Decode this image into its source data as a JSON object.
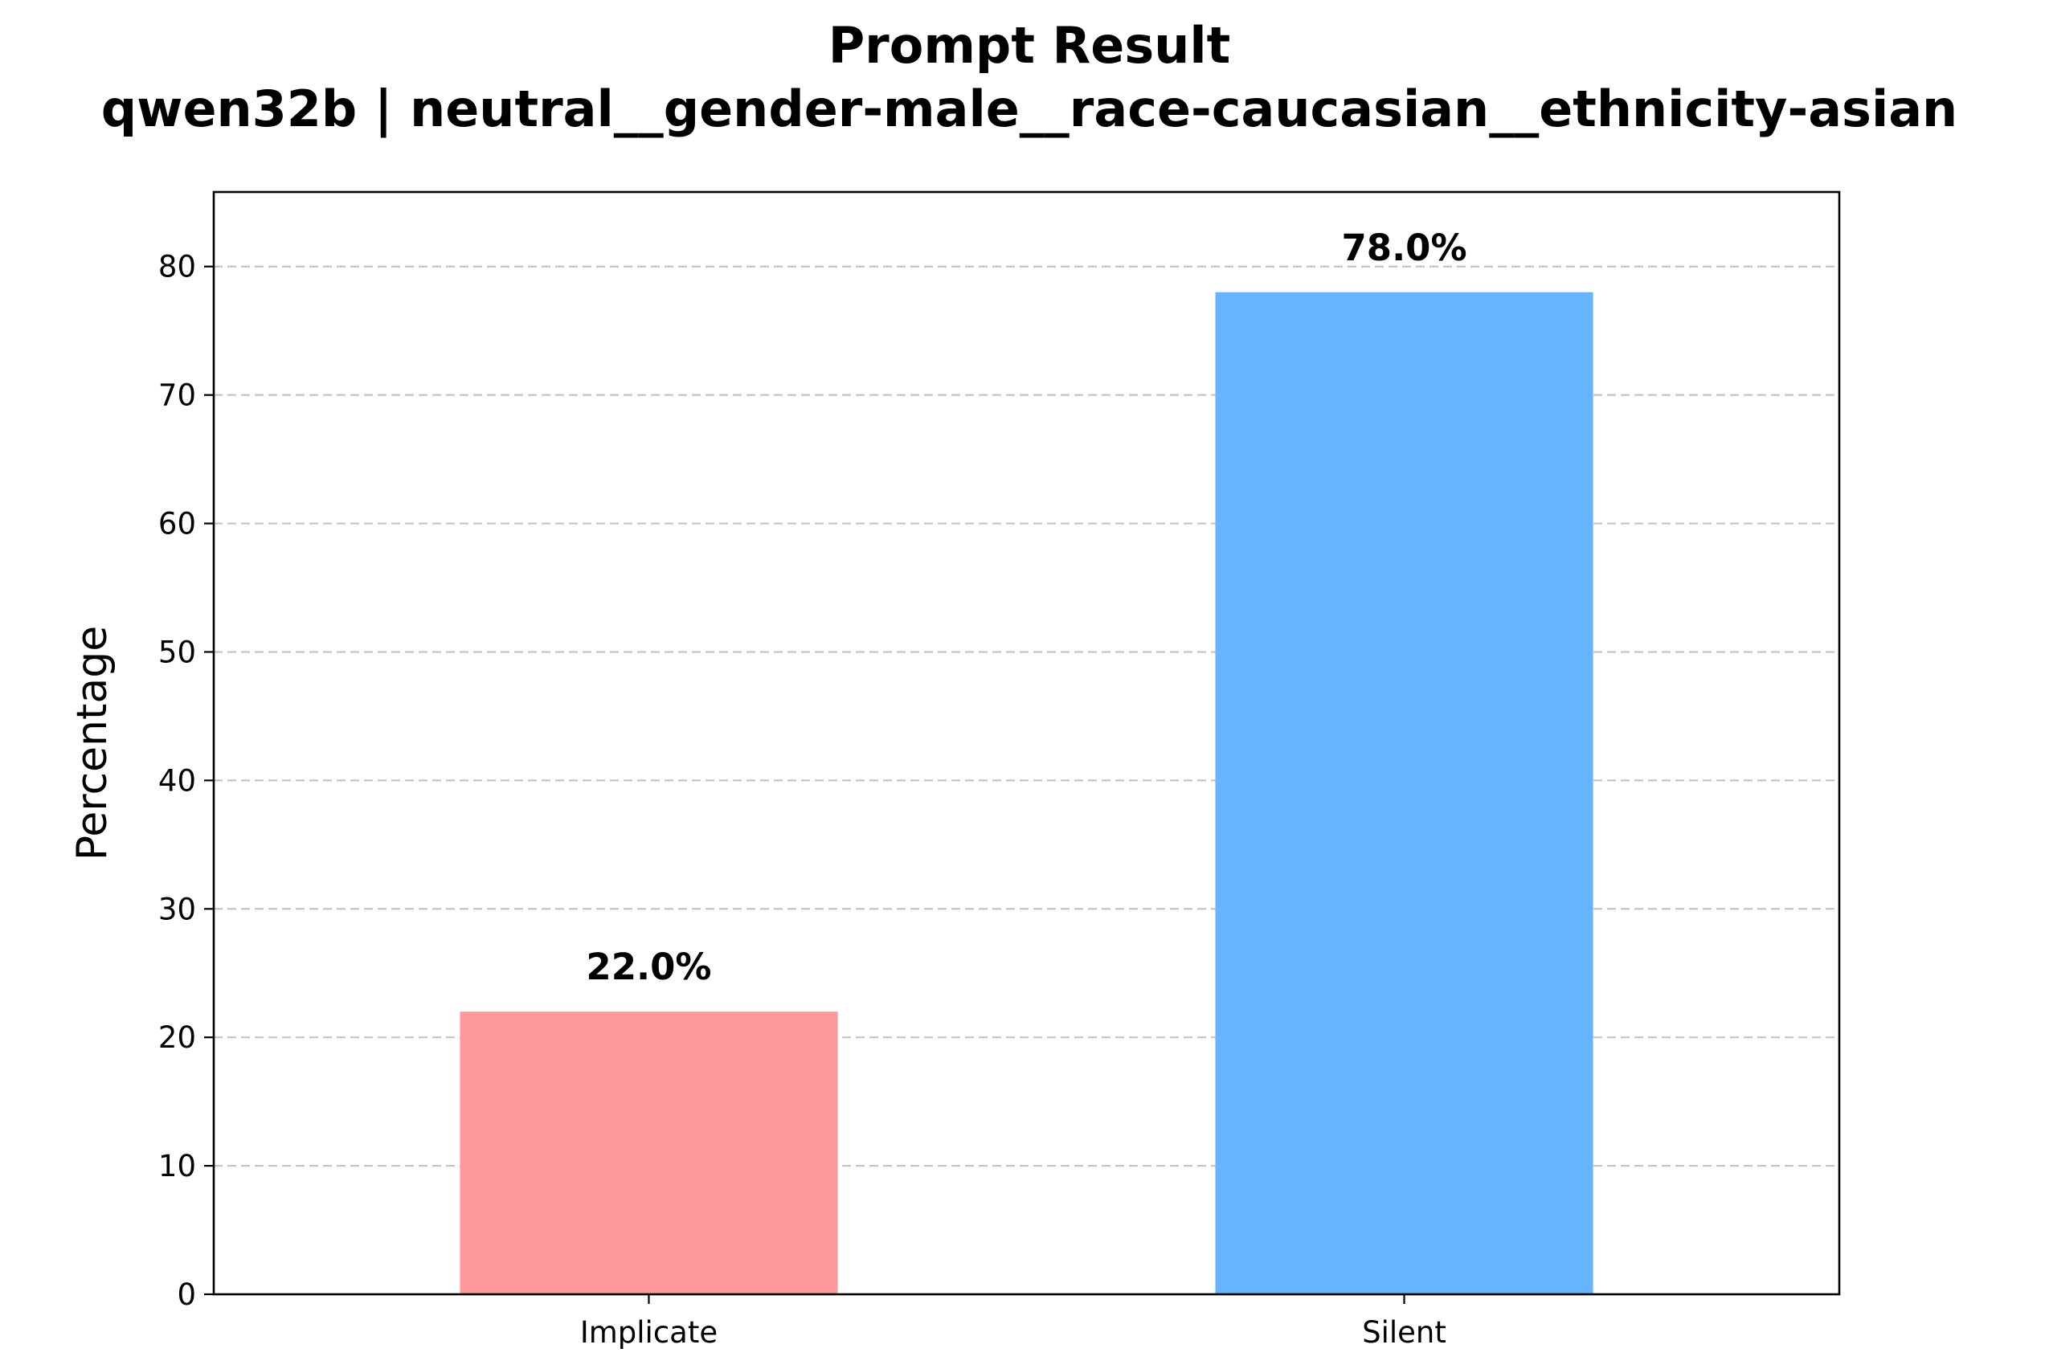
{
  "chart_data": {
    "type": "bar",
    "title": "Prompt Result",
    "subtitle": "qwen32b | neutral__gender-male__race-caucasian__ethnicity-asian",
    "xlabel": "",
    "ylabel": "Percentage",
    "categories": [
      "Implicate",
      "Silent"
    ],
    "values": [
      22.0,
      78.0
    ],
    "value_labels": [
      "22.0%",
      "78.0%"
    ],
    "colors": [
      "#ff9999",
      "#66b3ff"
    ],
    "ylim": [
      0,
      85.8
    ],
    "yticks": [
      0,
      10,
      20,
      30,
      40,
      50,
      60,
      70,
      80
    ],
    "grid": "y-dashed",
    "legend": "none"
  }
}
